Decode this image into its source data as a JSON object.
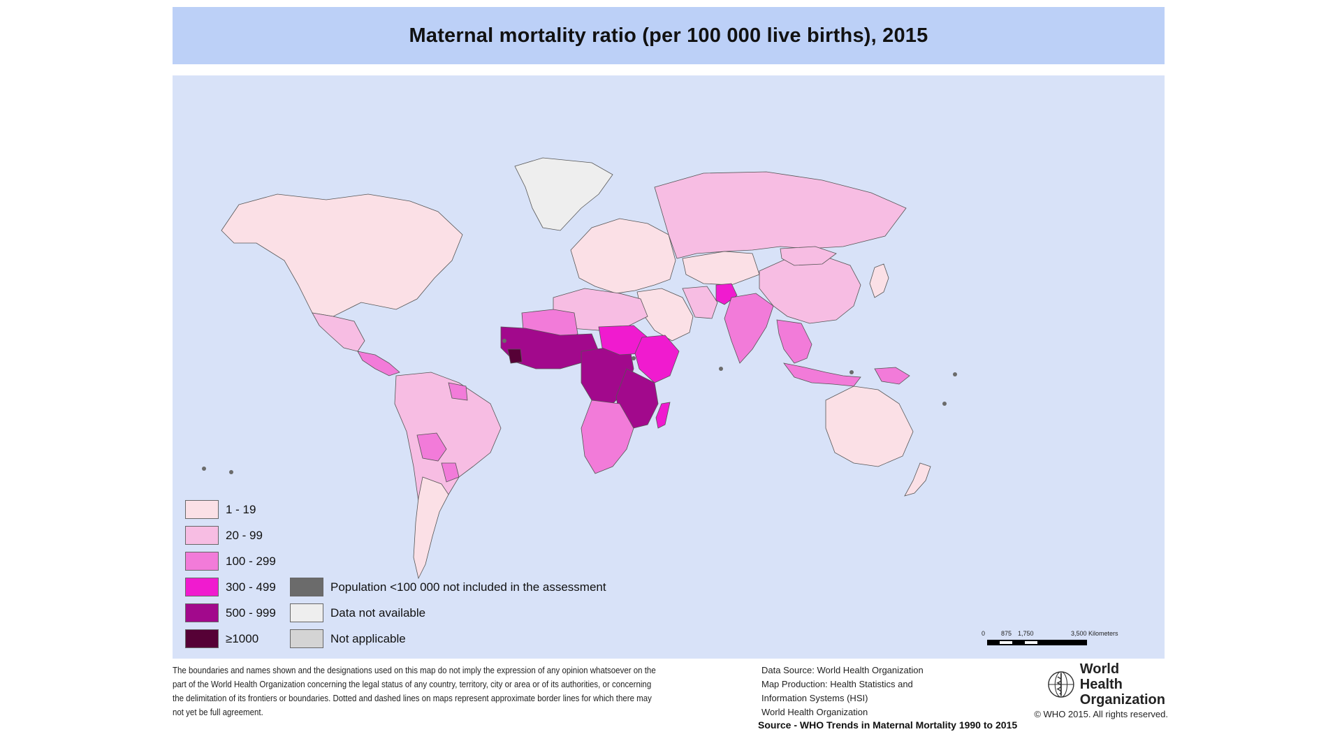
{
  "title": "Maternal mortality ratio (per 100 000 live births), 2015",
  "colors": {
    "ocean": "#d8e2f8",
    "title_bg": "#bcd0f7",
    "border": "#555555",
    "c1_19": "#fbe0e6",
    "c20_99": "#f7bde3",
    "c100_299": "#f27bd9",
    "c300_499": "#f01bcf",
    "c500_999": "#a2098c",
    "c1000": "#560136",
    "pop_excluded": "#6b6b6b",
    "no_data": "#eeeeee",
    "not_applicable": "#d4d4d4"
  },
  "legend": [
    {
      "label": "1 - 19",
      "color_key": "c1_19"
    },
    {
      "label": "20 - 99",
      "color_key": "c20_99"
    },
    {
      "label": "100 - 299",
      "color_key": "c100_299"
    },
    {
      "label": "300 - 499",
      "color_key": "c300_499"
    },
    {
      "label": "500 - 999",
      "color_key": "c500_999"
    },
    {
      "label": "≥1000",
      "color_key": "c1000"
    },
    {
      "label": "Population <100 000 not included in the assessment",
      "color_key": "pop_excluded"
    },
    {
      "label": "Data not available",
      "color_key": "no_data"
    },
    {
      "label": "Not applicable",
      "color_key": "not_applicable"
    }
  ],
  "scale": {
    "labels": [
      "0",
      "875",
      "1,750",
      "3,500 Kilometers"
    ]
  },
  "disclaimer": "The boundaries and names shown and the designations used on this map do not imply the expression of any opinion whatsoever on the part of the World Health Organization concerning the legal status of any country, territory, city or area or of its authorities, or concerning the delimitation of its frontiers or boundaries. Dotted and dashed lines on maps represent approximate border lines for which there may not yet be full agreement.",
  "datasource": {
    "line1": "Data Source: World Health Organization",
    "line2": "Map Production: Health Statistics and",
    "line3": "Information Systems (HSI)",
    "line4": "World Health Organization"
  },
  "source": "Source - WHO Trends in Maternal Mortality 1990 to 2015",
  "who": {
    "line1": "World Health",
    "line2": "Organization"
  },
  "copyright": "© WHO 2015. All rights reserved.",
  "regions": [
    {
      "name": "Greenland",
      "category": "no_data"
    },
    {
      "name": "North America",
      "category": "c1_19"
    },
    {
      "name": "Mexico",
      "category": "c20_99"
    },
    {
      "name": "Central America",
      "category": "c100_299"
    },
    {
      "name": "South America",
      "category": "c20_99"
    },
    {
      "name": "Bolivia",
      "category": "c100_299"
    },
    {
      "name": "Paraguay",
      "category": "c100_299"
    },
    {
      "name": "Guyana",
      "category": "c100_299"
    },
    {
      "name": "Argentina and Chile",
      "category": "c1_19"
    },
    {
      "name": "Europe",
      "category": "c1_19"
    },
    {
      "name": "Russia",
      "category": "c20_99"
    },
    {
      "name": "Kazakhstan",
      "category": "c1_19"
    },
    {
      "name": "Middle East",
      "category": "c1_19"
    },
    {
      "name": "Iran",
      "category": "c20_99"
    },
    {
      "name": "Afghanistan",
      "category": "c300_499"
    },
    {
      "name": "South Asia",
      "category": "c100_299"
    },
    {
      "name": "China",
      "category": "c20_99"
    },
    {
      "name": "Mongolia",
      "category": "c20_99"
    },
    {
      "name": "Southeast Asia",
      "category": "c100_299"
    },
    {
      "name": "Indonesia",
      "category": "c100_299"
    },
    {
      "name": "Papua New Guinea",
      "category": "c100_299"
    },
    {
      "name": "Australia",
      "category": "c1_19"
    },
    {
      "name": "New Zealand",
      "category": "c1_19"
    },
    {
      "name": "Japan",
      "category": "c1_19"
    },
    {
      "name": "North Africa",
      "category": "c20_99"
    },
    {
      "name": "Mauritania and Mali",
      "category": "c100_299"
    },
    {
      "name": "West Africa",
      "category": "c500_999"
    },
    {
      "name": "Sierra Leone",
      "category": "c1000"
    },
    {
      "name": "Central Africa",
      "category": "c500_999"
    },
    {
      "name": "Sudan",
      "category": "c300_499"
    },
    {
      "name": "Horn of Africa",
      "category": "c300_499"
    },
    {
      "name": "East Africa",
      "category": "c500_999"
    },
    {
      "name": "Southern Africa",
      "category": "c100_299"
    },
    {
      "name": "Madagascar",
      "category": "c300_499"
    }
  ]
}
